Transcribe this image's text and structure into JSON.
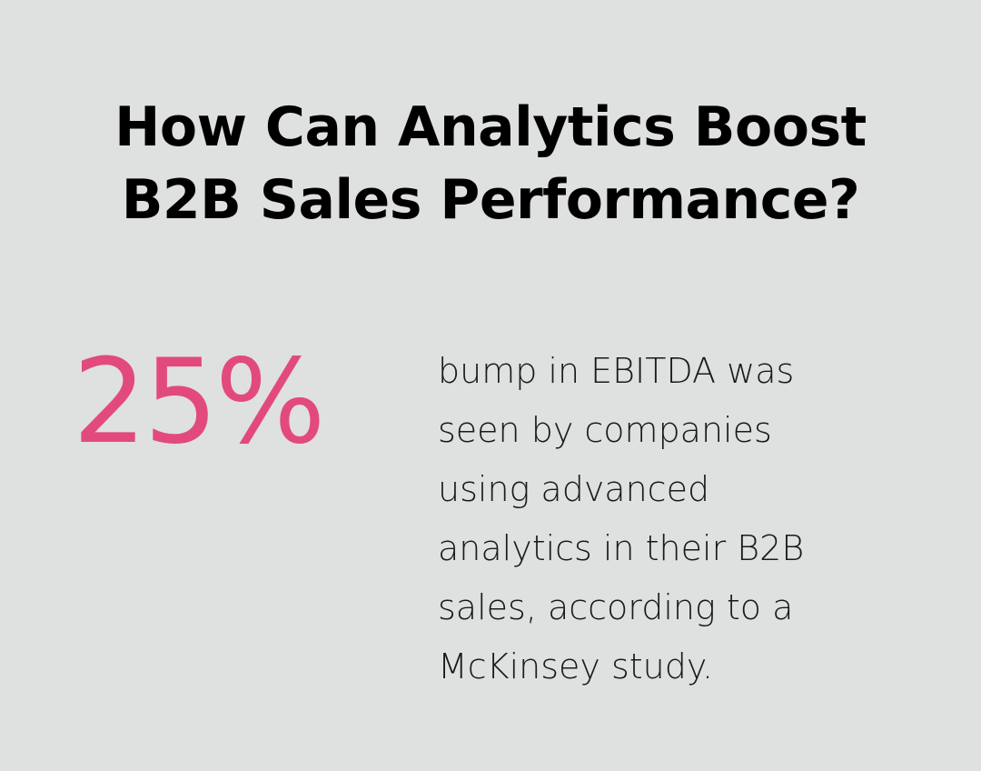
{
  "title": {
    "line1": "How Can Analytics Boost",
    "line2": "B2B Sales Performance?"
  },
  "stat": {
    "value": "25%",
    "description_lines": [
      "bump in EBITDA was",
      "seen by companies",
      "using advanced",
      "analytics in their B2B",
      "sales, according to a",
      "McKinsey study."
    ]
  },
  "colors": {
    "background": "#dfe0e0",
    "accent": "#e24a7d",
    "title": "#000000",
    "body_text": "#1a1a1a"
  }
}
